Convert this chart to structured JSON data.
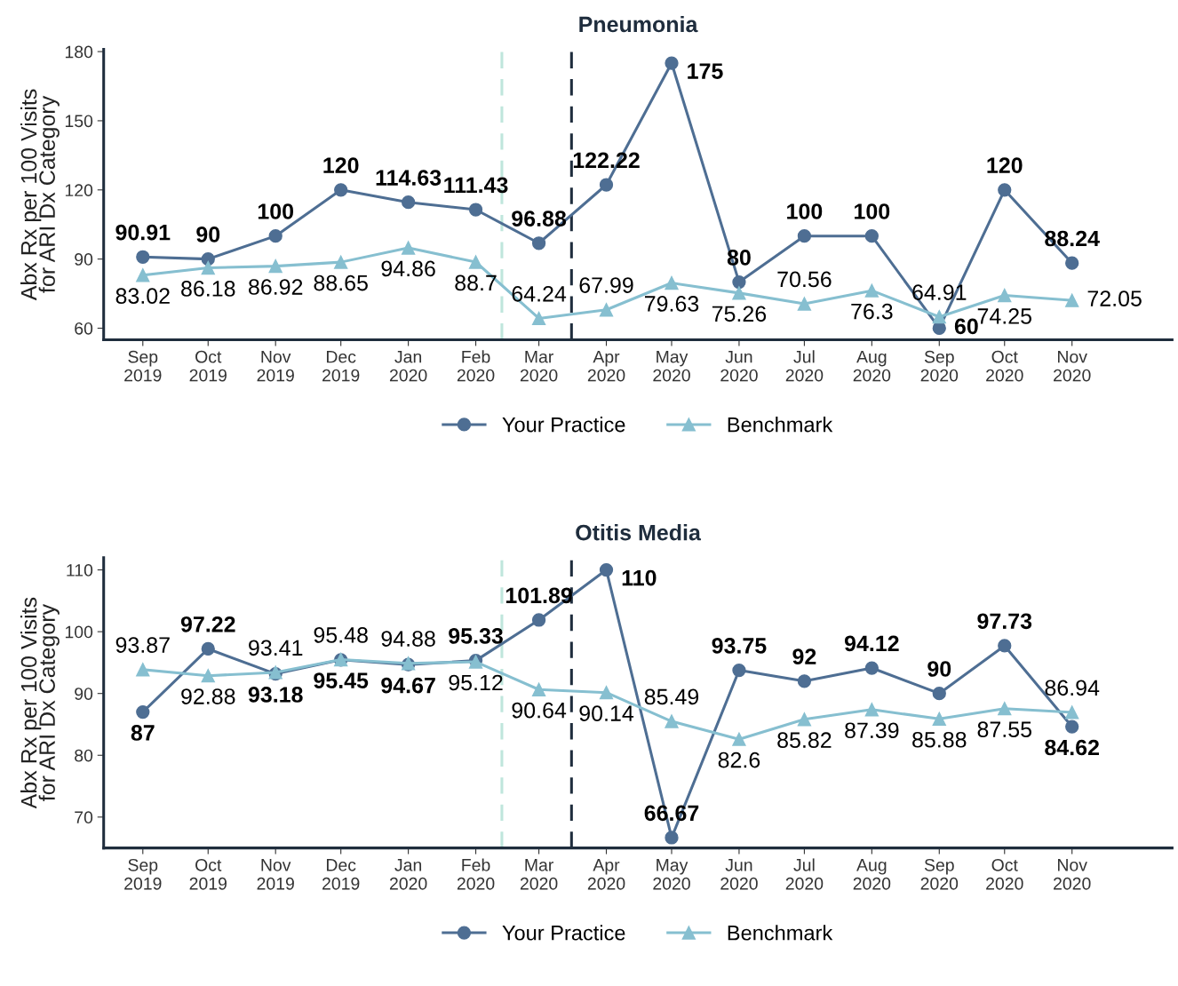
{
  "chart_data": [
    {
      "type": "line",
      "title": "Pneumonia",
      "ylabel": "Abx Rx per 100 Visits\nfor ARI Dx Category",
      "x": [
        "2019-09",
        "2019-10",
        "2019-11",
        "2019-12",
        "2020-01",
        "2020-02",
        "2020-03",
        "2020-04",
        "2020-05",
        "2020-06",
        "2020-07",
        "2020-08",
        "2020-09",
        "2020-10",
        "2020-11"
      ],
      "xlim": [
        "2019-08-14",
        "2020-12-17"
      ],
      "xticks": [
        {
          "value": "2019-09",
          "label": "Sep\n2019"
        },
        {
          "value": "2019-10",
          "label": "Oct\n2019"
        },
        {
          "value": "2019-11",
          "label": "Nov\n2019"
        },
        {
          "value": "2019-12",
          "label": "Dec\n2019"
        },
        {
          "value": "2020-01",
          "label": "Jan\n2020"
        },
        {
          "value": "2020-02",
          "label": "Feb\n2020"
        },
        {
          "value": "2020-03",
          "label": "Mar\n2020"
        },
        {
          "value": "2020-04",
          "label": "Apr\n2020"
        },
        {
          "value": "2020-05",
          "label": "May\n2020"
        },
        {
          "value": "2020-06",
          "label": "Jun\n2020"
        },
        {
          "value": "2020-07",
          "label": "Jul\n2020"
        },
        {
          "value": "2020-08",
          "label": "Aug\n2020"
        },
        {
          "value": "2020-09",
          "label": "Sep\n2020"
        },
        {
          "value": "2020-10",
          "label": "Oct\n2020"
        },
        {
          "value": "2020-11",
          "label": "Nov\n2020"
        }
      ],
      "ylim": [
        55,
        181
      ],
      "yticks": [
        60,
        90,
        120,
        150,
        180
      ],
      "series": [
        {
          "name": "Your Practice",
          "color": "#4e6e93",
          "marker": "circle",
          "values": [
            90.91,
            90,
            100,
            120,
            114.63,
            111.43,
            96.88,
            122.22,
            175,
            80,
            100,
            100,
            60,
            120,
            88.24
          ]
        },
        {
          "name": "Benchmark",
          "color": "#86bfd0",
          "marker": "triangle",
          "values": [
            83.02,
            86.18,
            86.92,
            88.65,
            94.86,
            88.7,
            64.24,
            67.99,
            79.63,
            75.26,
            70.56,
            76.3,
            64.91,
            74.25,
            72.05
          ]
        }
      ],
      "ref_lines": [
        {
          "axis": "x",
          "value": "2020-02-13",
          "color": "#bfe6dc",
          "line_style": "dashed"
        },
        {
          "axis": "x",
          "value": "2020-03-16",
          "color": "#1f2d3d",
          "line_style": "dashed"
        }
      ],
      "data_labels": true,
      "legend": "bottom",
      "grid": false
    },
    {
      "type": "line",
      "title": "Otitis Media",
      "ylabel": "Abx Rx per 100 Visits\nfor ARI Dx Category",
      "x": [
        "2019-09",
        "2019-10",
        "2019-11",
        "2019-12",
        "2020-01",
        "2020-02",
        "2020-03",
        "2020-04",
        "2020-05",
        "2020-06",
        "2020-07",
        "2020-08",
        "2020-09",
        "2020-10",
        "2020-11"
      ],
      "xlim": [
        "2019-08-14",
        "2020-12-17"
      ],
      "xticks": [
        {
          "value": "2019-09",
          "label": "Sep\n2019"
        },
        {
          "value": "2019-10",
          "label": "Oct\n2019"
        },
        {
          "value": "2019-11",
          "label": "Nov\n2019"
        },
        {
          "value": "2019-12",
          "label": "Dec\n2019"
        },
        {
          "value": "2020-01",
          "label": "Jan\n2020"
        },
        {
          "value": "2020-02",
          "label": "Feb\n2020"
        },
        {
          "value": "2020-03",
          "label": "Mar\n2020"
        },
        {
          "value": "2020-04",
          "label": "Apr\n2020"
        },
        {
          "value": "2020-05",
          "label": "May\n2020"
        },
        {
          "value": "2020-06",
          "label": "Jun\n2020"
        },
        {
          "value": "2020-07",
          "label": "Jul\n2020"
        },
        {
          "value": "2020-08",
          "label": "Aug\n2020"
        },
        {
          "value": "2020-09",
          "label": "Sep\n2020"
        },
        {
          "value": "2020-10",
          "label": "Oct\n2020"
        },
        {
          "value": "2020-11",
          "label": "Nov\n2020"
        }
      ],
      "ylim": [
        65,
        112
      ],
      "yticks": [
        70,
        80,
        90,
        100,
        110
      ],
      "series": [
        {
          "name": "Your Practice",
          "color": "#4e6e93",
          "marker": "circle",
          "values": [
            87,
            97.22,
            93.18,
            95.45,
            94.67,
            95.33,
            101.89,
            110,
            66.67,
            93.75,
            92,
            94.12,
            90,
            97.73,
            84.62
          ]
        },
        {
          "name": "Benchmark",
          "color": "#86bfd0",
          "marker": "triangle",
          "values": [
            93.87,
            92.88,
            93.41,
            95.48,
            94.88,
            95.12,
            90.64,
            90.14,
            85.49,
            82.6,
            85.82,
            87.39,
            85.88,
            87.55,
            86.94
          ]
        }
      ],
      "ref_lines": [
        {
          "axis": "x",
          "value": "2020-02-13",
          "color": "#bfe6dc",
          "line_style": "dashed"
        },
        {
          "axis": "x",
          "value": "2020-03-16",
          "color": "#1f2d3d",
          "line_style": "dashed"
        }
      ],
      "data_labels": true,
      "legend": "bottom",
      "grid": false
    }
  ]
}
